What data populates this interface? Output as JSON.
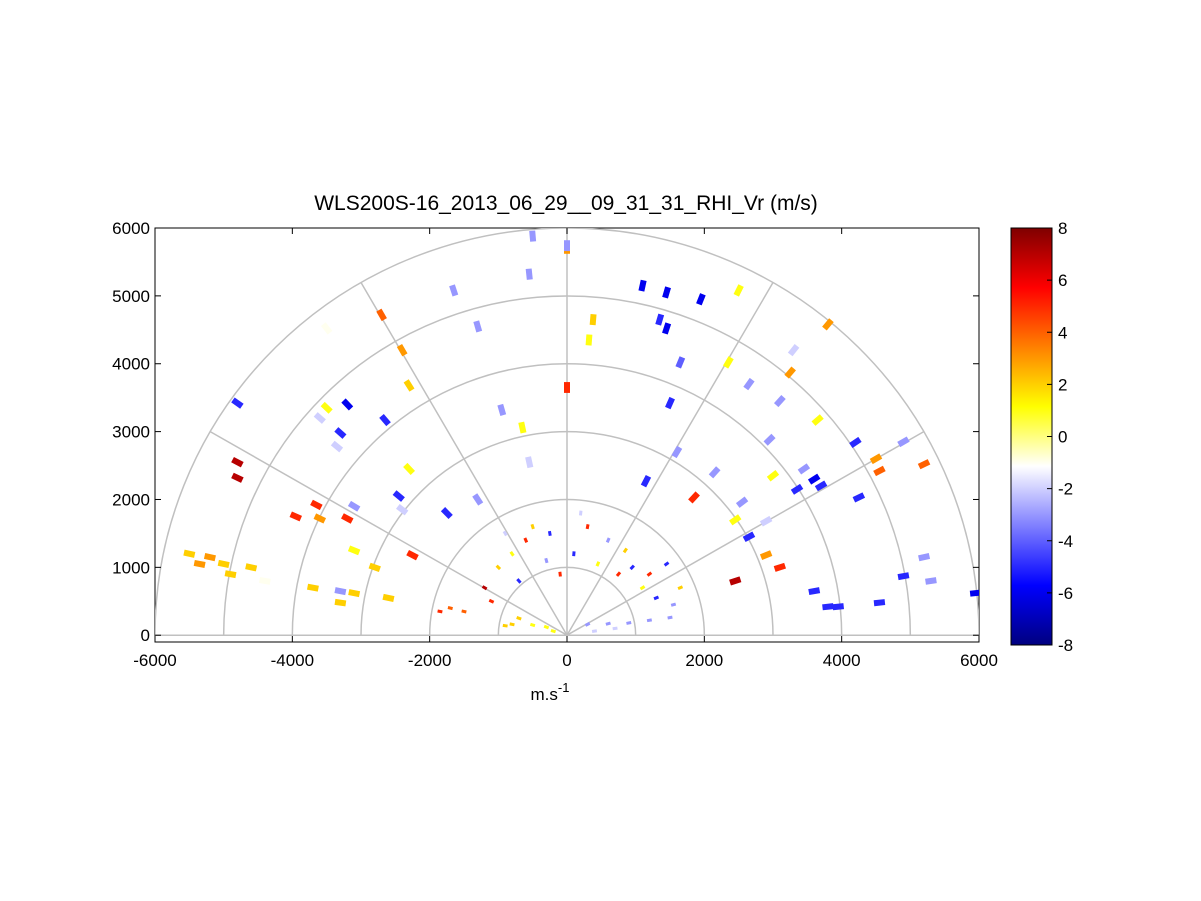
{
  "chart_data": {
    "type": "scatter",
    "title": "WLS200S-16_2013_06_29__09_31_31_RHI_Vr (m/s)",
    "xlabel": "m.s",
    "xlabel_superscript": "-1",
    "ylabel": "",
    "xlim": [
      -6000,
      6000
    ],
    "ylim": [
      -100,
      6000
    ],
    "xticks": [
      "-6000",
      "-4000",
      "-2000",
      "0",
      "2000",
      "4000",
      "6000"
    ],
    "yticks": [
      "0",
      "1000",
      "2000",
      "3000",
      "4000",
      "5000",
      "6000"
    ],
    "polar_grid": {
      "ring_radii": [
        1000,
        2000,
        3000,
        4000,
        5000,
        6000
      ],
      "spoke_angles_deg": [
        0,
        30,
        60,
        90,
        120,
        150,
        180
      ]
    },
    "colorbar": {
      "range": [
        -8,
        8
      ],
      "ticks": [
        "8",
        "6",
        "4",
        "2",
        "0",
        "-2",
        "-4",
        "-6",
        "-8"
      ],
      "colors": [
        "#00007f",
        "#0000ff",
        "#7f7fff",
        "#ffffff",
        "#ffff00",
        "#ff8000",
        "#ff0000",
        "#7f0000"
      ]
    },
    "radial_velocity_points": [
      {
        "x": -500,
        "y": 5880,
        "v": -3
      },
      {
        "x": 0,
        "y": 5700,
        "v": 3
      },
      {
        "x": 0,
        "y": 5740,
        "v": -3
      },
      {
        "x": -550,
        "y": 5320,
        "v": -3
      },
      {
        "x": -1650,
        "y": 5080,
        "v": -3
      },
      {
        "x": -1300,
        "y": 4550,
        "v": -3
      },
      {
        "x": 1100,
        "y": 5150,
        "v": -6
      },
      {
        "x": 1450,
        "y": 5050,
        "v": -6
      },
      {
        "x": 1950,
        "y": 4950,
        "v": -6
      },
      {
        "x": 2500,
        "y": 5080,
        "v": 1
      },
      {
        "x": 380,
        "y": 4650,
        "v": 2
      },
      {
        "x": 320,
        "y": 4350,
        "v": 1
      },
      {
        "x": 1350,
        "y": 4650,
        "v": -5
      },
      {
        "x": 1450,
        "y": 4520,
        "v": -6
      },
      {
        "x": 1650,
        "y": 4020,
        "v": -4
      },
      {
        "x": 2350,
        "y": 4020,
        "v": 1
      },
      {
        "x": 2650,
        "y": 3700,
        "v": -3
      },
      {
        "x": 3250,
        "y": 3870,
        "v": 3
      },
      {
        "x": 3300,
        "y": 4200,
        "v": -2
      },
      {
        "x": 3800,
        "y": 4580,
        "v": 3
      },
      {
        "x": 0,
        "y": 3650,
        "v": 5
      },
      {
        "x": -3500,
        "y": 4520,
        "v": -1
      },
      {
        "x": -2700,
        "y": 4720,
        "v": 4
      },
      {
        "x": -2400,
        "y": 4200,
        "v": 3
      },
      {
        "x": -2300,
        "y": 3680,
        "v": 2
      },
      {
        "x": -4800,
        "y": 3420,
        "v": -5
      },
      {
        "x": -3500,
        "y": 3350,
        "v": 1
      },
      {
        "x": -3200,
        "y": 3400,
        "v": -6
      },
      {
        "x": -3600,
        "y": 3200,
        "v": -2
      },
      {
        "x": -3300,
        "y": 2980,
        "v": -5
      },
      {
        "x": -3350,
        "y": 2780,
        "v": -2
      },
      {
        "x": -2650,
        "y": 3170,
        "v": -5
      },
      {
        "x": -950,
        "y": 3320,
        "v": -3
      },
      {
        "x": -650,
        "y": 3060,
        "v": 1
      },
      {
        "x": 1500,
        "y": 3420,
        "v": -5
      },
      {
        "x": 3100,
        "y": 3450,
        "v": -3
      },
      {
        "x": 3650,
        "y": 3170,
        "v": 1
      },
      {
        "x": 2950,
        "y": 2880,
        "v": -3
      },
      {
        "x": 4200,
        "y": 2840,
        "v": -5
      },
      {
        "x": 4900,
        "y": 2850,
        "v": -3
      },
      {
        "x": 4500,
        "y": 2600,
        "v": 3
      },
      {
        "x": 4550,
        "y": 2420,
        "v": 4
      },
      {
        "x": 5200,
        "y": 2520,
        "v": 4
      },
      {
        "x": 3450,
        "y": 2450,
        "v": -3
      },
      {
        "x": 3600,
        "y": 2300,
        "v": -6
      },
      {
        "x": 3350,
        "y": 2150,
        "v": -5
      },
      {
        "x": 3700,
        "y": 2200,
        "v": -5
      },
      {
        "x": 4250,
        "y": 2030,
        "v": -5
      },
      {
        "x": 3000,
        "y": 2350,
        "v": 1
      },
      {
        "x": 2150,
        "y": 2400,
        "v": -3
      },
      {
        "x": 1600,
        "y": 2700,
        "v": -3
      },
      {
        "x": 1150,
        "y": 2270,
        "v": -5
      },
      {
        "x": 1850,
        "y": 2030,
        "v": 5
      },
      {
        "x": 2550,
        "y": 1960,
        "v": -3
      },
      {
        "x": 2450,
        "y": 1700,
        "v": 1
      },
      {
        "x": 2900,
        "y": 1680,
        "v": -2
      },
      {
        "x": 2650,
        "y": 1450,
        "v": -5
      },
      {
        "x": 2900,
        "y": 1180,
        "v": 3
      },
      {
        "x": 3100,
        "y": 1000,
        "v": 5
      },
      {
        "x": 2450,
        "y": 800,
        "v": 7
      },
      {
        "x": 3600,
        "y": 650,
        "v": -5
      },
      {
        "x": 3800,
        "y": 420,
        "v": -5
      },
      {
        "x": 3950,
        "y": 420,
        "v": -5
      },
      {
        "x": 4550,
        "y": 480,
        "v": -5
      },
      {
        "x": 4900,
        "y": 870,
        "v": -5
      },
      {
        "x": 5200,
        "y": 1150,
        "v": -3
      },
      {
        "x": 5300,
        "y": 800,
        "v": -3
      },
      {
        "x": 5950,
        "y": 620,
        "v": -6
      },
      {
        "x": -4800,
        "y": 2550,
        "v": 7
      },
      {
        "x": -4800,
        "y": 2320,
        "v": 7
      },
      {
        "x": -3650,
        "y": 1920,
        "v": 5
      },
      {
        "x": -3950,
        "y": 1750,
        "v": 5
      },
      {
        "x": -3600,
        "y": 1720,
        "v": 3
      },
      {
        "x": -3200,
        "y": 1720,
        "v": 5
      },
      {
        "x": -3100,
        "y": 1900,
        "v": -3
      },
      {
        "x": -2300,
        "y": 2450,
        "v": 1
      },
      {
        "x": -2450,
        "y": 2050,
        "v": -5
      },
      {
        "x": -2400,
        "y": 1850,
        "v": -2
      },
      {
        "x": -1300,
        "y": 2000,
        "v": -3
      },
      {
        "x": -1750,
        "y": 1800,
        "v": -5
      },
      {
        "x": -550,
        "y": 2550,
        "v": -2
      },
      {
        "x": -5500,
        "y": 1200,
        "v": 2
      },
      {
        "x": -5350,
        "y": 1050,
        "v": 3
      },
      {
        "x": -5200,
        "y": 1150,
        "v": 3
      },
      {
        "x": -5000,
        "y": 1050,
        "v": 2
      },
      {
        "x": -4900,
        "y": 900,
        "v": 2
      },
      {
        "x": -4600,
        "y": 1000,
        "v": 2
      },
      {
        "x": -4400,
        "y": 800,
        "v": -1
      },
      {
        "x": -3100,
        "y": 1250,
        "v": 1
      },
      {
        "x": -2800,
        "y": 1000,
        "v": 2
      },
      {
        "x": -2250,
        "y": 1180,
        "v": 5
      },
      {
        "x": -3300,
        "y": 650,
        "v": -3
      },
      {
        "x": -3100,
        "y": 620,
        "v": 2
      },
      {
        "x": -3700,
        "y": 700,
        "v": 2
      },
      {
        "x": -3300,
        "y": 480,
        "v": 2
      },
      {
        "x": -2600,
        "y": 550,
        "v": 2
      },
      {
        "x": -1700,
        "y": 400,
        "v": 4
      },
      {
        "x": -1500,
        "y": 350,
        "v": 4
      },
      {
        "x": -1850,
        "y": 350,
        "v": 5
      },
      {
        "x": -1200,
        "y": 700,
        "v": 7
      },
      {
        "x": -1100,
        "y": 500,
        "v": 5
      },
      {
        "x": -1000,
        "y": 1000,
        "v": 2
      },
      {
        "x": -800,
        "y": 1200,
        "v": 1
      },
      {
        "x": -700,
        "y": 800,
        "v": -5
      },
      {
        "x": -600,
        "y": 1400,
        "v": 5
      },
      {
        "x": -500,
        "y": 1600,
        "v": 2
      },
      {
        "x": -300,
        "y": 1100,
        "v": -3
      },
      {
        "x": -250,
        "y": 1500,
        "v": -5
      },
      {
        "x": -100,
        "y": 900,
        "v": 5
      },
      {
        "x": 100,
        "y": 1200,
        "v": -5
      },
      {
        "x": 300,
        "y": 1600,
        "v": 5
      },
      {
        "x": 450,
        "y": 1050,
        "v": 1
      },
      {
        "x": 600,
        "y": 1400,
        "v": -3
      },
      {
        "x": 750,
        "y": 900,
        "v": 5
      },
      {
        "x": 850,
        "y": 1250,
        "v": 2
      },
      {
        "x": 950,
        "y": 1000,
        "v": -5
      },
      {
        "x": 1100,
        "y": 700,
        "v": 1
      },
      {
        "x": 1200,
        "y": 900,
        "v": 5
      },
      {
        "x": 1300,
        "y": 550,
        "v": -5
      },
      {
        "x": 1450,
        "y": 1050,
        "v": -5
      },
      {
        "x": 1650,
        "y": 700,
        "v": 2
      },
      {
        "x": 1550,
        "y": 450,
        "v": -3
      },
      {
        "x": -900,
        "y": 1500,
        "v": -2
      },
      {
        "x": 200,
        "y": 1800,
        "v": -2
      },
      {
        "x": -700,
        "y": 250,
        "v": 2
      },
      {
        "x": -500,
        "y": 150,
        "v": 1
      },
      {
        "x": -300,
        "y": 120,
        "v": 1
      },
      {
        "x": -800,
        "y": 160,
        "v": 2
      },
      {
        "x": 300,
        "y": 160,
        "v": -3
      },
      {
        "x": 600,
        "y": 170,
        "v": -3
      },
      {
        "x": 900,
        "y": 180,
        "v": -3
      },
      {
        "x": 1200,
        "y": 220,
        "v": -3
      },
      {
        "x": 1500,
        "y": 260,
        "v": -3
      },
      {
        "x": 700,
        "y": 100,
        "v": -2
      },
      {
        "x": 400,
        "y": 60,
        "v": -2
      },
      {
        "x": -200,
        "y": 60,
        "v": 1
      },
      {
        "x": -900,
        "y": 140,
        "v": 2
      }
    ]
  }
}
